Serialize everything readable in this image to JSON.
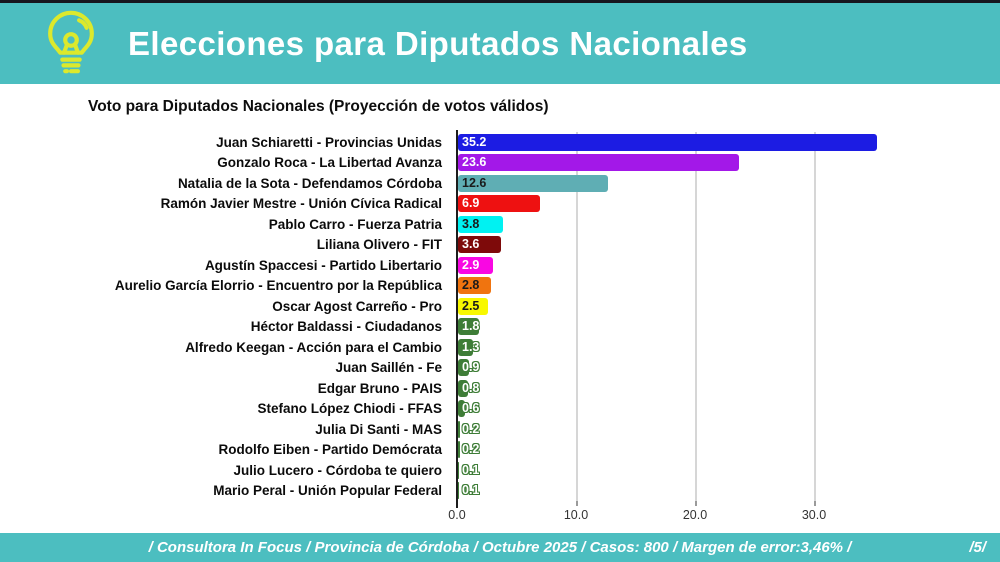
{
  "header": {
    "title": "Elecciones para Diputados Nacionales",
    "background_color": "#4CBEC0",
    "icon_color": "#DCE92C"
  },
  "chart": {
    "title": "Voto para Diputados Nacionales (Proyección de votos válidos)"
  },
  "chart_data": {
    "type": "bar",
    "orientation": "horizontal",
    "title": "Voto para Diputados Nacionales (Proyección de votos válidos)",
    "xlim": [
      0,
      36
    ],
    "grid": true,
    "x_ticks": [
      0,
      10,
      20,
      30
    ],
    "x_tick_labels": [
      "0.0",
      "10.0",
      "20.0",
      "30.0"
    ],
    "candidates": [
      {
        "label": "Juan Schiaretti - Provincias Unidas",
        "value": 35.2,
        "display": "35.2",
        "color": "#1C1CE3",
        "label_style": "light"
      },
      {
        "label": "Gonzalo Roca - La Libertad Avanza",
        "value": 23.6,
        "display": "23.6",
        "color": "#A318E8",
        "label_style": "light"
      },
      {
        "label": "Natalia de la Sota - Defendamos Córdoba",
        "value": 12.6,
        "display": "12.6",
        "color": "#5FAEB4",
        "label_style": "dark"
      },
      {
        "label": "Ramón Javier Mestre - Unión Cívica Radical",
        "value": 6.9,
        "display": "6.9",
        "color": "#EE1111",
        "label_style": "light"
      },
      {
        "label": "Pablo Carro - Fuerza Patria",
        "value": 3.8,
        "display": "3.8",
        "color": "#00F2F2",
        "label_style": "dark"
      },
      {
        "label": "Liliana Olivero - FIT",
        "value": 3.6,
        "display": "3.6",
        "color": "#7E0A0A",
        "label_style": "light"
      },
      {
        "label": "Agustín Spaccesi - Partido Libertario",
        "value": 2.9,
        "display": "2.9",
        "color": "#F907E3",
        "label_style": "light"
      },
      {
        "label": "Aurelio García Elorrio - Encuentro por la República",
        "value": 2.8,
        "display": "2.8",
        "color": "#F0740F",
        "label_style": "dark"
      },
      {
        "label": "Oscar Agost Carreño - Pro",
        "value": 2.5,
        "display": "2.5",
        "color": "#F8F800",
        "label_style": "dark"
      },
      {
        "label": "Héctor Baldassi - Ciudadanos",
        "value": 1.8,
        "display": "1.8",
        "color": "#3E7D37",
        "label_style": "outline"
      },
      {
        "label": "Alfredo Keegan - Acción para el Cambio",
        "value": 1.3,
        "display": "1.3",
        "color": "#3E7D37",
        "label_style": "outline"
      },
      {
        "label": "Juan Saillén - Fe",
        "value": 0.9,
        "display": "0.9",
        "color": "#3E7D37",
        "label_style": "outline"
      },
      {
        "label": "Edgar Bruno - PAIS",
        "value": 0.8,
        "display": "0.8",
        "color": "#3E7D37",
        "label_style": "outline"
      },
      {
        "label": "Stefano López Chiodi - FFAS",
        "value": 0.6,
        "display": "0.6",
        "color": "#3E7D37",
        "label_style": "outline"
      },
      {
        "label": "Julia Di Santi - MAS",
        "value": 0.2,
        "display": "0.2",
        "color": "#3E7D37",
        "label_style": "outline"
      },
      {
        "label": "Rodolfo Eiben - Partido Demócrata",
        "value": 0.2,
        "display": "0.2",
        "color": "#3E7D37",
        "label_style": "outline"
      },
      {
        "label": "Julio Lucero - Córdoba te quiero",
        "value": 0.1,
        "display": "0.1",
        "color": "#3E7D37",
        "label_style": "outline"
      },
      {
        "label": "Mario Peral - Unión Popular Federal",
        "value": 0.1,
        "display": "0.1",
        "color": "#3E7D37",
        "label_style": "outline"
      }
    ]
  },
  "footer": {
    "source_line": "/ Consultora In Focus / Provincia de Córdoba / Octubre 2025 / Casos: 800 / Margen de error:3,46% /",
    "page": "/5/"
  }
}
